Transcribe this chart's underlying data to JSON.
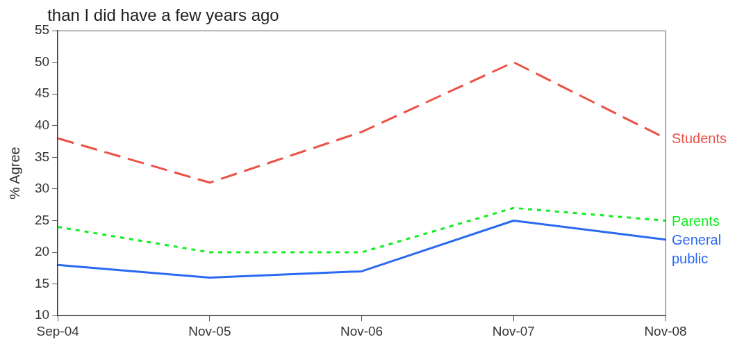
{
  "chart_data": {
    "type": "line",
    "title": "than I did have a few years ago",
    "ylabel": "% Agree",
    "categories": [
      "Sep-04",
      "Nov-05",
      "Nov-06",
      "Nov-07",
      "Nov-08"
    ],
    "ylim": [
      10,
      55
    ],
    "yticks": [
      10,
      15,
      20,
      25,
      30,
      35,
      40,
      45,
      50,
      55
    ],
    "series": [
      {
        "name": "Students",
        "color": "#ec5146",
        "line_style": "dashed",
        "values": [
          38,
          31,
          39,
          50,
          38
        ]
      },
      {
        "name": "Parents",
        "color": "#11ee22",
        "line_style": "dotted",
        "values": [
          24,
          20,
          20,
          27,
          25
        ]
      },
      {
        "name": "General public",
        "color": "#2a6af0",
        "line_style": "solid",
        "values": [
          18,
          16,
          17,
          25,
          22
        ]
      }
    ]
  }
}
